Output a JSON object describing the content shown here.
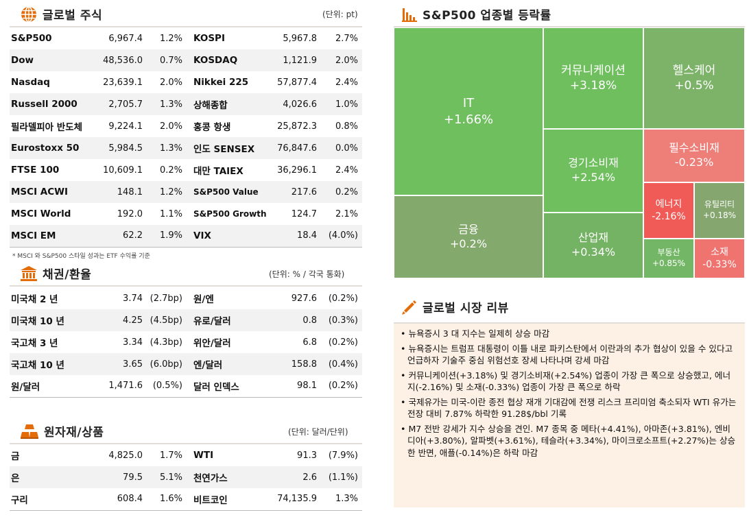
{
  "global_stocks": {
    "title": "글로벌 주식",
    "unit": "(단위: pt)",
    "rows": [
      {
        "n1": "S&P500",
        "v1": "6,967.4",
        "c1": "1.2%",
        "n2": "KOSPI",
        "v2": "5,967.8",
        "c2": "2.7%"
      },
      {
        "n1": "Dow",
        "v1": "48,536.0",
        "c1": "0.7%",
        "n2": "KOSDAQ",
        "v2": "1,121.9",
        "c2": "2.0%"
      },
      {
        "n1": "Nasdaq",
        "v1": "23,639.1",
        "c1": "2.0%",
        "n2": "Nikkei 225",
        "v2": "57,877.4",
        "c2": "2.4%"
      },
      {
        "n1": "Russell 2000",
        "v1": "2,705.7",
        "c1": "1.3%",
        "n2": "상해종합",
        "v2": "4,026.6",
        "c2": "1.0%"
      },
      {
        "n1": "필라델피아 반도체",
        "v1": "9,224.1",
        "c1": "2.0%",
        "n2": "홍콩 항생",
        "v2": "25,872.3",
        "c2": "0.8%"
      },
      {
        "n1": "Eurostoxx 50",
        "v1": "5,984.5",
        "c1": "1.3%",
        "n2": "인도 SENSEX",
        "v2": "76,847.6",
        "c2": "0.0%"
      },
      {
        "n1": "FTSE 100",
        "v1": "10,609.1",
        "c1": "0.2%",
        "n2": "대만 TAIEX",
        "v2": "36,296.1",
        "c2": "2.4%"
      },
      {
        "n1": "MSCI ACWI",
        "v1": "148.1",
        "c1": "1.2%",
        "n2": "S&P500 Value",
        "v2": "217.6",
        "c2": "0.2%"
      },
      {
        "n1": "MSCI World",
        "v1": "192.0",
        "c1": "1.1%",
        "n2": "S&P500 Growth",
        "v2": "124.7",
        "c2": "2.1%"
      },
      {
        "n1": "MSCI EM",
        "v1": "62.2",
        "c1": "1.9%",
        "n2": "VIX",
        "v2": "18.4",
        "c2": "(4.0%)"
      }
    ],
    "footnote": "* MSCI 와 S&P500 스타일 성과는 ETF 수익률 기준"
  },
  "bonds_fx": {
    "title": "채권/환율",
    "unit": "(단위: % / 각국 통화)",
    "rows": [
      {
        "n1": "미국채 2 년",
        "v1": "3.74",
        "c1": "(2.7bp)",
        "n2": "원/엔",
        "v2": "927.6",
        "c2": "(0.2%)"
      },
      {
        "n1": "미국채 10 년",
        "v1": "4.25",
        "c1": "(4.5bp)",
        "n2": "유로/달러",
        "v2": "0.8",
        "c2": "(0.3%)"
      },
      {
        "n1": "국고채 3 년",
        "v1": "3.34",
        "c1": "(4.3bp)",
        "n2": "위안/달러",
        "v2": "6.8",
        "c2": "(0.2%)"
      },
      {
        "n1": "국고채 10 년",
        "v1": "3.65",
        "c1": "(6.0bp)",
        "n2": "엔/달러",
        "v2": "158.8",
        "c2": "(0.4%)"
      },
      {
        "n1": "원/달러",
        "v1": "1,471.6",
        "c1": "(0.5%)",
        "n2": "달러 인덱스",
        "v2": "98.1",
        "c2": "(0.2%)"
      }
    ]
  },
  "commodities": {
    "title": "원자재/상품",
    "unit": "(단위: 달러/단위)",
    "rows": [
      {
        "n1": "금",
        "v1": "4,825.0",
        "c1": "1.7%",
        "n2": "WTI",
        "v2": "91.3",
        "c2": "(7.9%)"
      },
      {
        "n1": "은",
        "v1": "79.5",
        "c1": "5.1%",
        "n2": "천연가스",
        "v2": "2.6",
        "c2": "(1.1%)"
      },
      {
        "n1": "구리",
        "v1": "608.4",
        "c1": "1.6%",
        "n2": "비트코인",
        "v2": "74,135.9",
        "c2": "1.3%"
      }
    ]
  },
  "sector": {
    "title": "S&P500 업종별 등락률",
    "tiles": [
      {
        "name": "IT",
        "value": "+1.66%",
        "color": "#6fbf5f",
        "size": 18
      },
      {
        "name": "커뮤니케이션",
        "value": "+3.18%",
        "color": "#6fbf5f",
        "size": 17
      },
      {
        "name": "헬스케어",
        "value": "+0.5%",
        "color": "#7cb369",
        "size": 17
      },
      {
        "name": "필수소비재",
        "value": "-0.23%",
        "color": "#ee7e78",
        "size": 16
      },
      {
        "name": "경기소비재",
        "value": "+2.54%",
        "color": "#6fbf5f",
        "size": 16
      },
      {
        "name": "금융",
        "value": "+0.2%",
        "color": "#84a96d",
        "size": 16
      },
      {
        "name": "에너지",
        "value": "-2.16%",
        "color": "#f15b57",
        "size": 14
      },
      {
        "name": "유틸리티",
        "value": "+0.18%",
        "color": "#86a670",
        "size": 12
      },
      {
        "name": "산업재",
        "value": "+0.34%",
        "color": "#74b364",
        "size": 16
      },
      {
        "name": "부동산",
        "value": "+0.85%",
        "color": "#73b766",
        "size": 12
      },
      {
        "name": "소재",
        "value": "-0.33%",
        "color": "#ef7470",
        "size": 14
      }
    ]
  },
  "review": {
    "title": "글로벌 시장 리뷰",
    "items": [
      "뉴욕증시 3 대 지수는 일제히 상승 마감",
      "뉴욕증시는 트럼프 대통령이 이틀 내로 파키스탄에서 이란과의 추가 협상이 있을 수 있다고 언급하자 기술주 중심 위험선호 장세 나타나며 강세 마감",
      "커뮤니케이션(+3.18%) 및 경기소비재(+2.54%) 업종이 가장 큰 폭으로 상승했고, 에너지(-2.16%) 및 소재(-0.33%) 업종이 가장 큰 폭으로 하락",
      "국제유가는 미국-이란 종전 협상 재개 기대감에 전쟁 리스크 프리미엄 축소되자 WTI 유가는 전장 대비 7.87% 하락한 91.28$/bbl 기록",
      "M7 전반 강세가 지수 상승을 견인. M7 종목 중 메타(+4.41%), 아마존(+3.81%), 엔비디아(+3.80%), 알파벳(+3.61%), 테슬라(+3.34%), 마이크로소프트(+2.27%)는 상승한 반면, 애플(-0.14%)은 하락 마감"
    ]
  },
  "colors": {
    "accent": "#e36c09",
    "header_rule": "#e0dcd6",
    "review_bg": "#fdf1e6"
  }
}
